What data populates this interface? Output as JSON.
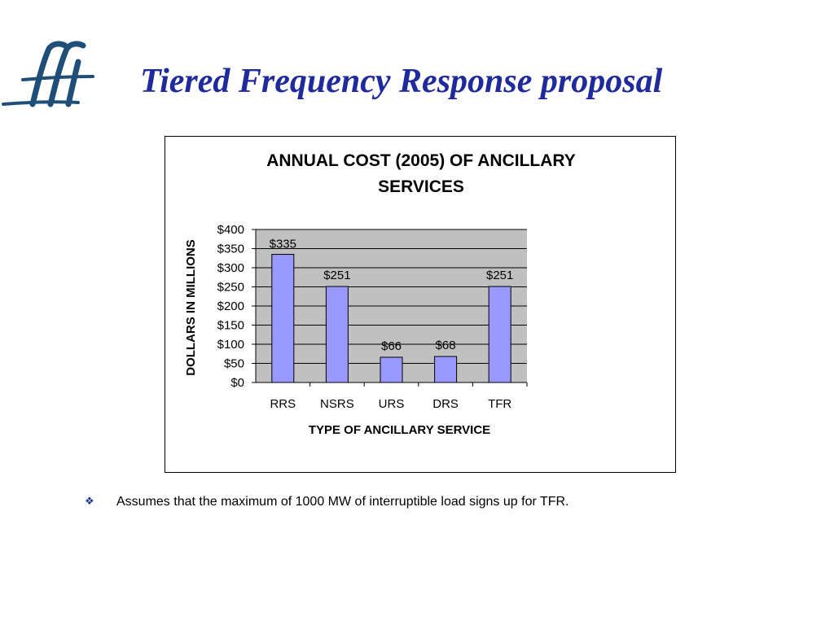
{
  "slide": {
    "title": "Tiered Frequency Response proposal",
    "bullet_glyph": "❖",
    "bullet_text": "Assumes that the maximum of 1000 MW of interruptible load signs up for TFR.",
    "logo_icon": "fa-monogram-logo"
  },
  "colors": {
    "title": "#1f2a9c",
    "logo": "#1f4e79",
    "plot_bg": "#c0c0c0",
    "bar_fill": "#9999ff"
  },
  "chart_data": {
    "type": "bar",
    "title_lines": [
      "ANNUAL COST (2005) OF ANCILLARY",
      "SERVICES"
    ],
    "xlabel": "TYPE OF ANCILLARY SERVICE",
    "ylabel": "DOLLARS IN MILLIONS",
    "categories": [
      "RRS",
      "NSRS",
      "URS",
      "DRS",
      "TFR"
    ],
    "values": [
      335,
      251,
      66,
      68,
      251
    ],
    "data_labels": [
      "$335",
      "$251",
      "$66",
      "$68",
      "$251"
    ],
    "ylim": [
      0,
      400
    ],
    "yticks": [
      0,
      50,
      100,
      150,
      200,
      250,
      300,
      350,
      400
    ],
    "ytick_labels": [
      "$0",
      "$50",
      "$100",
      "$150",
      "$200",
      "$250",
      "$300",
      "$350",
      "$400"
    ],
    "grid": true,
    "legend": false
  }
}
